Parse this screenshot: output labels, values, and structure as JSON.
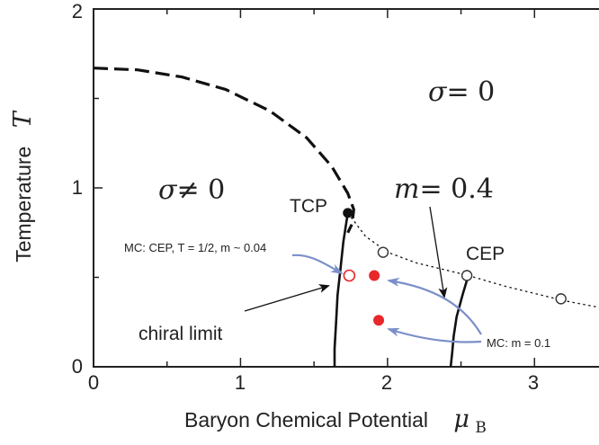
{
  "chart_data": {
    "type": "line",
    "xlabel": "Baryon Chemical Potential",
    "xlabel_symbol": "μ",
    "xlabel_subscript": "B",
    "ylabel": "Temperature",
    "ylabel_symbol": "T",
    "xlim": [
      0,
      3.5
    ],
    "ylim": [
      0,
      2
    ],
    "x_ticks": [
      "0",
      "1",
      "2",
      "3"
    ],
    "y_ticks": [
      "0",
      "1",
      "2"
    ],
    "series": [
      {
        "style": "dashed",
        "x": [
          0.0,
          0.3,
          0.6,
          0.9,
          1.2,
          1.45,
          1.62,
          1.73,
          1.77,
          1.76,
          1.73
        ],
        "y": [
          1.67,
          1.66,
          1.62,
          1.55,
          1.43,
          1.28,
          1.12,
          0.97,
          0.88,
          0.8,
          0.75
        ]
      },
      {
        "style": "solid",
        "x": [
          1.73,
          1.7,
          1.68,
          1.66,
          1.65,
          1.64,
          1.64
        ],
        "y": [
          0.86,
          0.7,
          0.55,
          0.4,
          0.25,
          0.1,
          0.0
        ]
      },
      {
        "style": "dotted",
        "x": [
          1.73,
          1.85,
          2.0,
          2.2,
          2.4,
          2.55,
          2.8,
          3.0,
          3.2,
          3.45
        ],
        "y": [
          0.86,
          0.73,
          0.64,
          0.58,
          0.54,
          0.51,
          0.45,
          0.41,
          0.37,
          0.33
        ]
      },
      {
        "style": "solid",
        "x": [
          2.55,
          2.51,
          2.47,
          2.45,
          2.44,
          2.43
        ],
        "y": [
          0.51,
          0.4,
          0.28,
          0.17,
          0.08,
          0.0
        ]
      }
    ],
    "points": [
      {
        "x": 1.73,
        "y": 0.86,
        "style": "filled-black"
      },
      {
        "x": 1.97,
        "y": 0.64,
        "style": "open-black"
      },
      {
        "x": 2.54,
        "y": 0.51,
        "style": "open-black"
      },
      {
        "x": 3.18,
        "y": 0.38,
        "style": "open-black"
      },
      {
        "x": 1.74,
        "y": 0.51,
        "style": "open-red"
      },
      {
        "x": 1.91,
        "y": 0.51,
        "style": "filled-red"
      },
      {
        "x": 1.94,
        "y": 0.26,
        "style": "filled-red"
      }
    ],
    "annotations": {
      "sigma_zero_symbol": "σ",
      "sigma_zero_rest": "= 0",
      "sigma_nonzero_symbol": "σ",
      "sigma_nonzero_rest": "≠ 0",
      "tcp": "TCP",
      "cep": "CEP",
      "m_symbol": "m",
      "m_rest": "= 0.4",
      "chiral_limit": "chiral limit",
      "mc_cep": "MC: CEP, T = 1/2,  m ~ 0.04",
      "mc_m": "MC: m = 0.1"
    },
    "colors": {
      "curve": "#111111",
      "marker_red": "#e8282b",
      "arrow_blue": "#7b8fc9"
    },
    "grid": false
  }
}
